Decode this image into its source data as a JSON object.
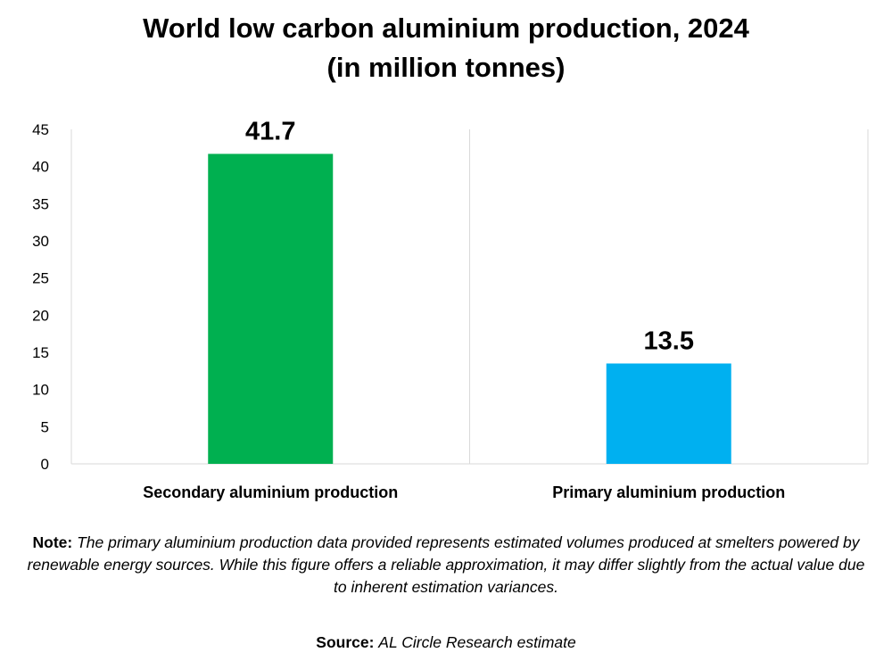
{
  "chart_data": {
    "type": "bar",
    "title_line1": "World low carbon aluminium production, 2024",
    "title_line2": "(in million tonnes)",
    "categories": [
      "Secondary aluminium production",
      "Primary aluminium production"
    ],
    "values": [
      41.7,
      13.5
    ],
    "data_labels": [
      "41.7",
      "13.5"
    ],
    "colors": [
      "#00b050",
      "#00b0f0"
    ],
    "ylim": [
      0,
      45
    ],
    "yticks": [
      "0",
      "5",
      "10",
      "15",
      "20",
      "25",
      "30",
      "35",
      "40",
      "45"
    ],
    "xlabel": "",
    "ylabel": "",
    "grid": "vertical category separators"
  },
  "note": {
    "lead": "Note:",
    "text": "The primary aluminium production data provided represents estimated volumes produced at smelters powered by renewable energy sources. While this figure offers a reliable approximation, it may differ slightly from the actual value due to inherent estimation variances."
  },
  "source": {
    "lead": "Source:",
    "text": "AL Circle Research estimate"
  }
}
